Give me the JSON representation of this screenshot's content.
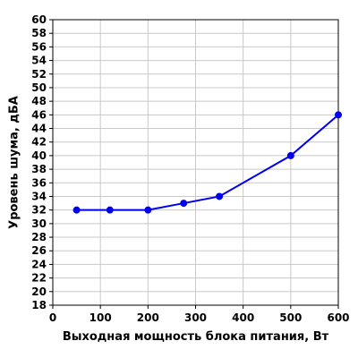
{
  "colors": {
    "series": "#0000ee",
    "grid": "#c8c8c8",
    "axis": "#000000",
    "background": "#ffffff"
  },
  "chart_data": {
    "type": "line",
    "title": "",
    "xlabel": "Выходная мощность блока питания, Вт",
    "ylabel": "Уровень шума, дБА",
    "xlim": [
      0,
      600
    ],
    "ylim": [
      18,
      60
    ],
    "xticks": [
      0,
      100,
      200,
      300,
      400,
      500,
      600
    ],
    "yticks": [
      18,
      20,
      22,
      24,
      26,
      28,
      30,
      32,
      34,
      36,
      38,
      40,
      42,
      44,
      46,
      48,
      50,
      52,
      54,
      56,
      58,
      60
    ],
    "grid": true,
    "legend": "none",
    "series": [
      {
        "x": [
          50,
          120,
          200,
          275,
          350,
          500,
          600
        ],
        "y": [
          32,
          32,
          32,
          33,
          34,
          40,
          46
        ]
      }
    ]
  }
}
